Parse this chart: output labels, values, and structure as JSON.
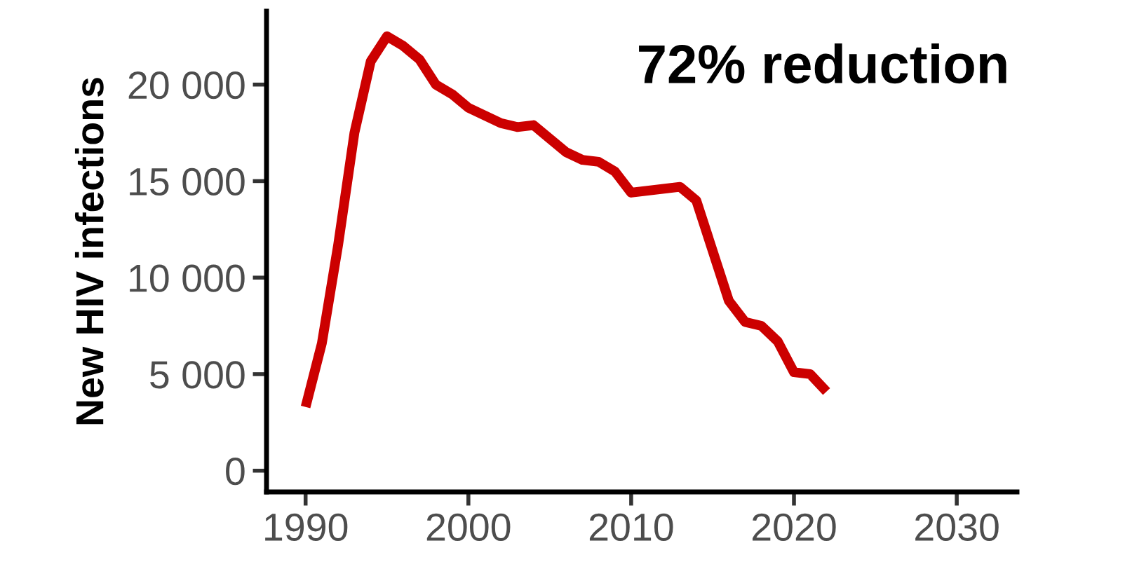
{
  "chart_data": {
    "type": "line",
    "ylabel": "New HIV infections",
    "annotations": [
      "72% reduction"
    ],
    "x": [
      1990,
      1991,
      1992,
      1993,
      1994,
      1995,
      1996,
      1997,
      1998,
      1999,
      2000,
      2001,
      2002,
      2003,
      2004,
      2005,
      2006,
      2007,
      2008,
      2009,
      2010,
      2011,
      2012,
      2013,
      2014,
      2015,
      2016,
      2017,
      2018,
      2019,
      2020,
      2021,
      2022
    ],
    "series": [
      {
        "color": "#cc0000",
        "values": [
          3300,
          6600,
          11700,
          17500,
          21200,
          22500,
          22000,
          21300,
          20000,
          19500,
          18800,
          18400,
          18000,
          17800,
          17900,
          17200,
          16500,
          16100,
          16000,
          15500,
          14400,
          14500,
          14600,
          14700,
          14000,
          11400,
          8800,
          7700,
          7500,
          6700,
          5100,
          5000,
          4100
        ]
      }
    ],
    "xlim": [
      1987.6,
      2033.7
    ],
    "ylim": [
      -1100,
      23800
    ],
    "xticks": [
      1990,
      2000,
      2010,
      2020,
      2030
    ],
    "yticks": [
      0,
      {
        "value": 5000,
        "label": "5 000"
      },
      {
        "value": 10000,
        "label": "10 000"
      },
      {
        "value": 15000,
        "label": "15 000"
      },
      {
        "value": 20000,
        "label": "20 000"
      }
    ],
    "grid": false,
    "legend": false,
    "marker": "none",
    "line_style": "solid"
  }
}
